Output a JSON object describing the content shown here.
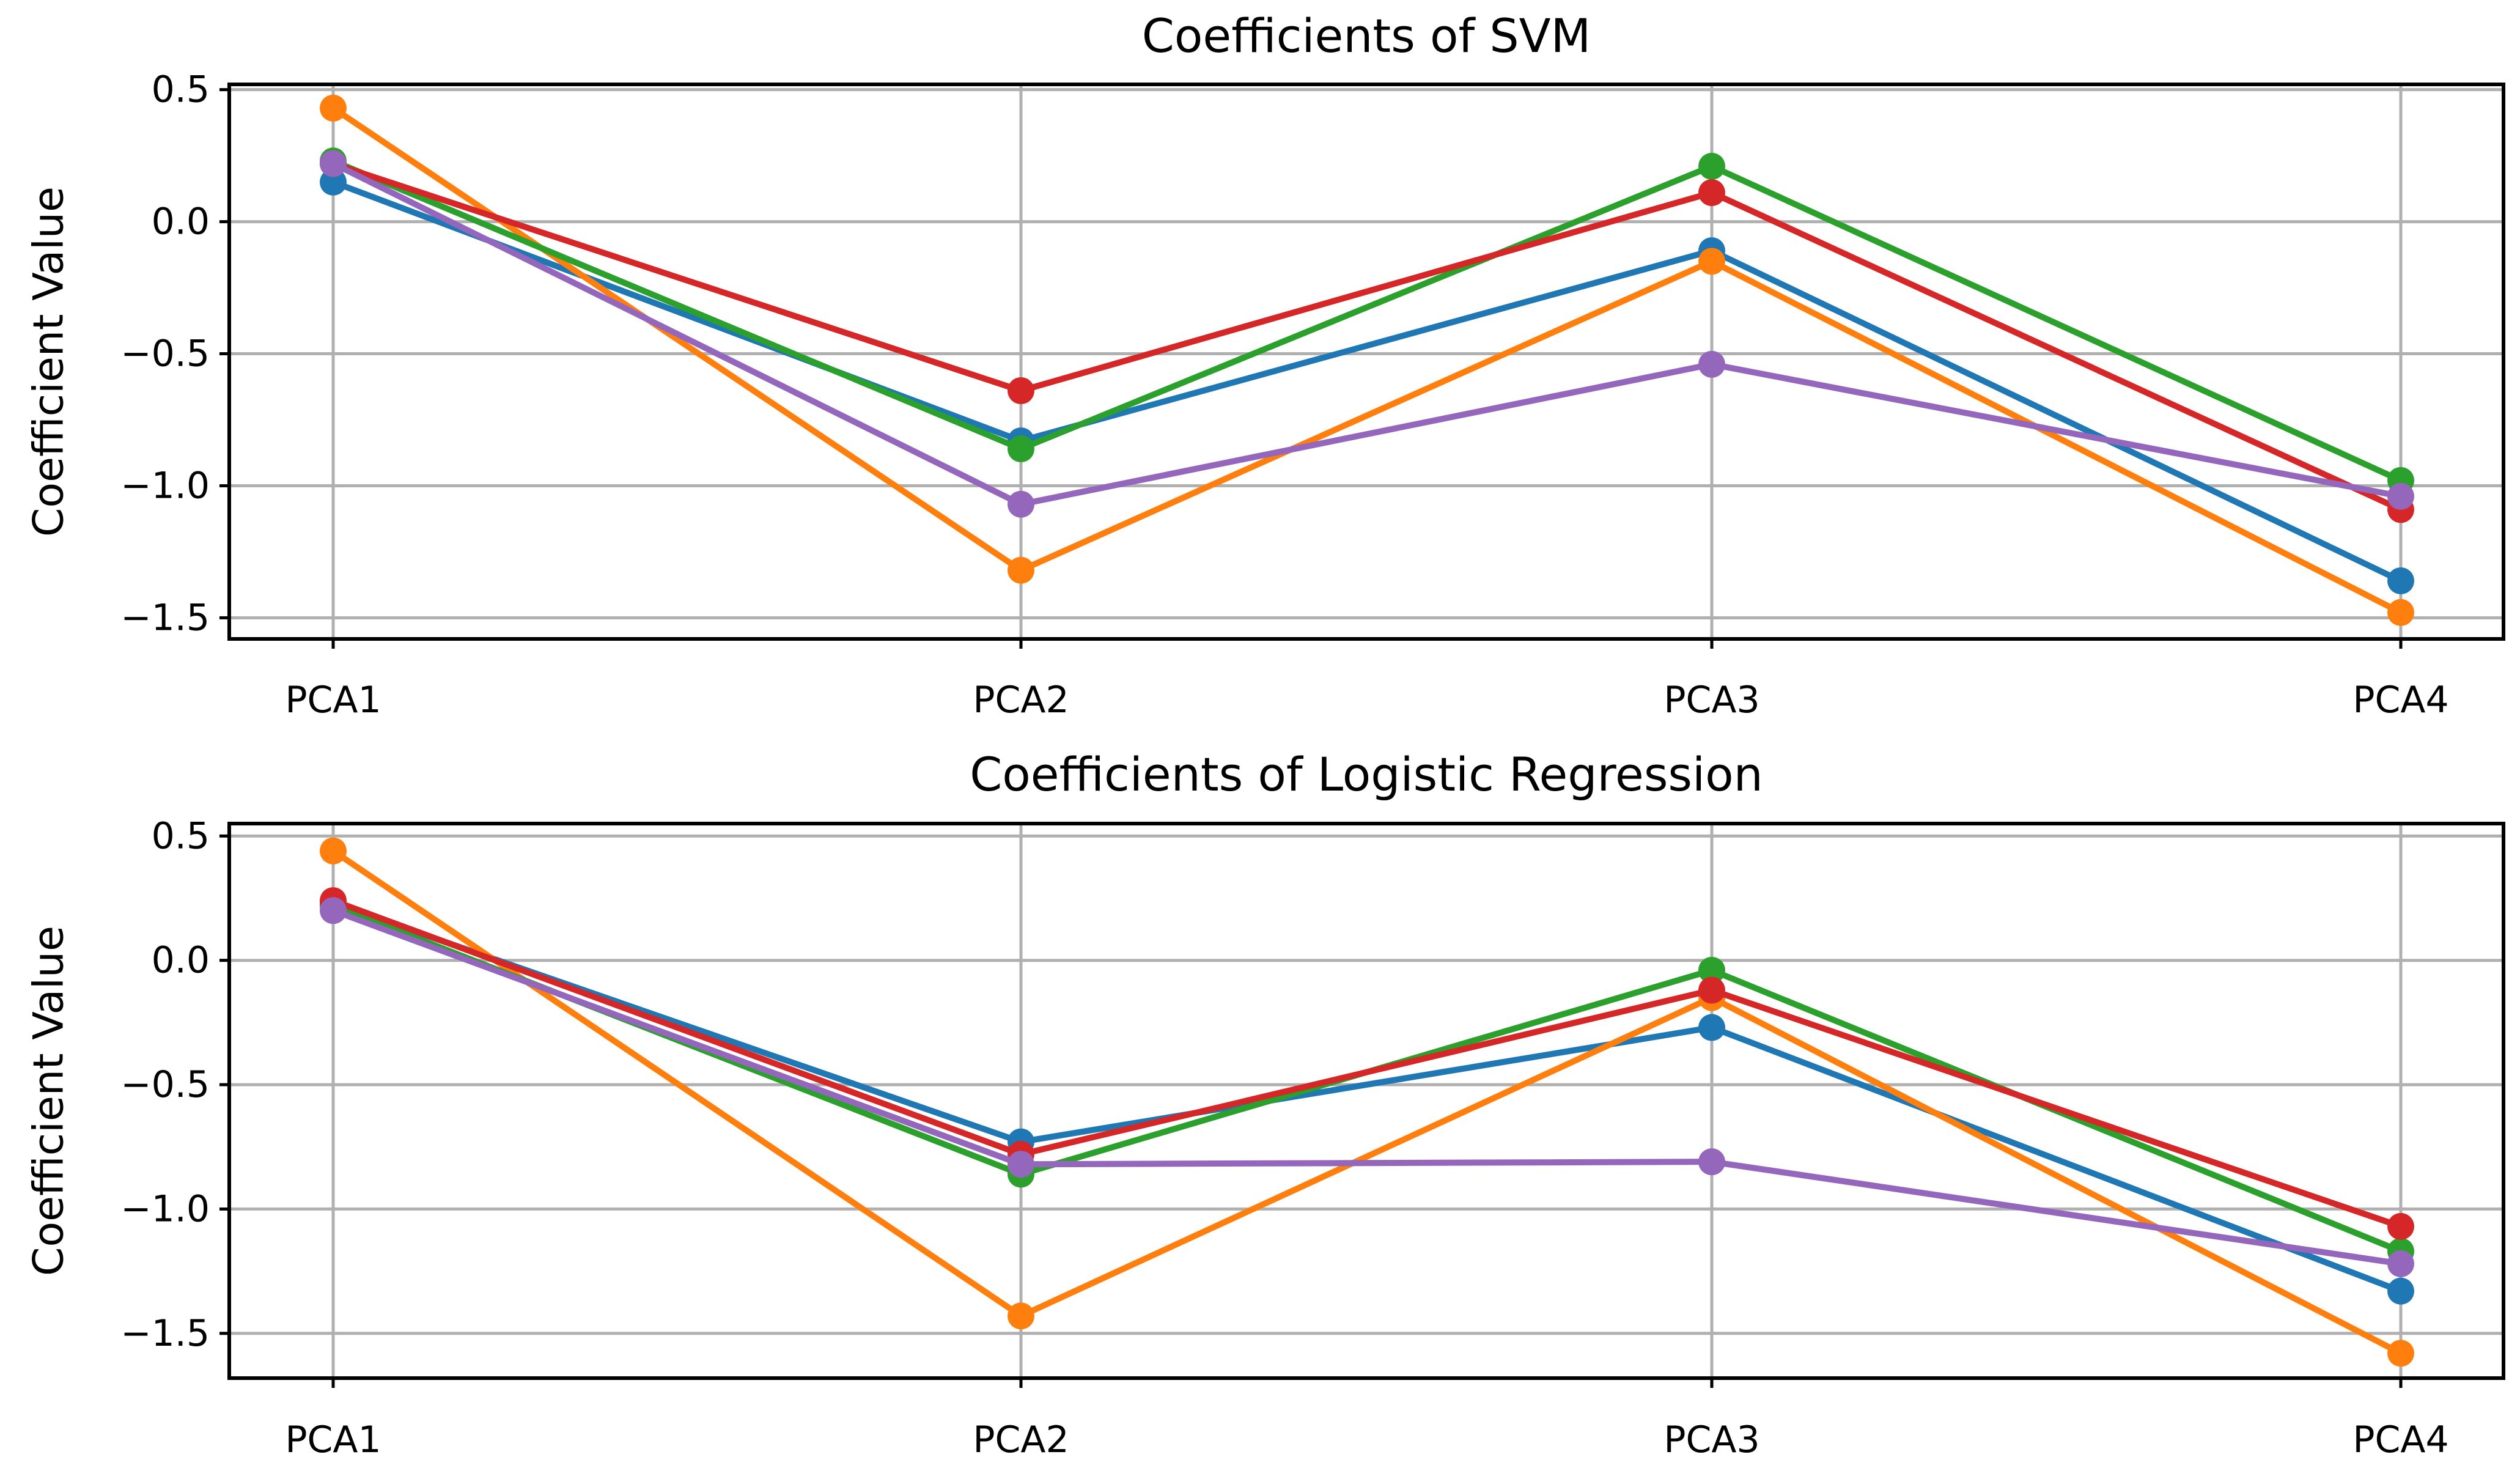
{
  "chart_data": [
    {
      "type": "line",
      "title": "Coefficients of SVM",
      "xlabel": "",
      "ylabel": "Coefficient Value",
      "categories": [
        "PCA1",
        "PCA2",
        "PCA3",
        "PCA4"
      ],
      "ylim": [
        -1.58,
        0.52
      ],
      "yticks": [
        0.5,
        0.0,
        -0.5,
        -1.0,
        -1.5
      ],
      "ytick_labels": [
        "0.5",
        "0.0",
        "−0.5",
        "−1.0",
        "−1.5"
      ],
      "grid": true,
      "series": [
        {
          "name": "series-1",
          "color": "#1f77b4",
          "values": [
            0.15,
            -0.83,
            -0.11,
            -1.36
          ]
        },
        {
          "name": "series-2",
          "color": "#ff7f0e",
          "values": [
            0.43,
            -1.32,
            -0.15,
            -1.48
          ]
        },
        {
          "name": "series-3",
          "color": "#2ca02c",
          "values": [
            0.23,
            -0.86,
            0.21,
            -0.98
          ]
        },
        {
          "name": "series-4",
          "color": "#d62728",
          "values": [
            0.22,
            -0.64,
            0.11,
            -1.09
          ]
        },
        {
          "name": "series-5",
          "color": "#9467bd",
          "values": [
            0.22,
            -1.07,
            -0.54,
            -1.04
          ]
        }
      ]
    },
    {
      "type": "line",
      "title": "Coefficients of Logistic Regression",
      "xlabel": "",
      "ylabel": "Coefficient Value",
      "categories": [
        "PCA1",
        "PCA2",
        "PCA3",
        "PCA4"
      ],
      "ylim": [
        -1.68,
        0.55
      ],
      "yticks": [
        0.5,
        0.0,
        -0.5,
        -1.0,
        -1.5
      ],
      "ytick_labels": [
        "0.5",
        "0.0",
        "−0.5",
        "−1.0",
        "−1.5"
      ],
      "grid": true,
      "series": [
        {
          "name": "series-1",
          "color": "#1f77b4",
          "values": [
            0.23,
            -0.73,
            -0.27,
            -1.33
          ]
        },
        {
          "name": "series-2",
          "color": "#ff7f0e",
          "values": [
            0.44,
            -1.43,
            -0.15,
            -1.58
          ]
        },
        {
          "name": "series-3",
          "color": "#2ca02c",
          "values": [
            0.22,
            -0.86,
            -0.04,
            -1.17
          ]
        },
        {
          "name": "series-4",
          "color": "#d62728",
          "values": [
            0.24,
            -0.78,
            -0.12,
            -1.07
          ]
        },
        {
          "name": "series-5",
          "color": "#9467bd",
          "values": [
            0.2,
            -0.82,
            -0.81,
            -1.22
          ]
        }
      ]
    }
  ]
}
